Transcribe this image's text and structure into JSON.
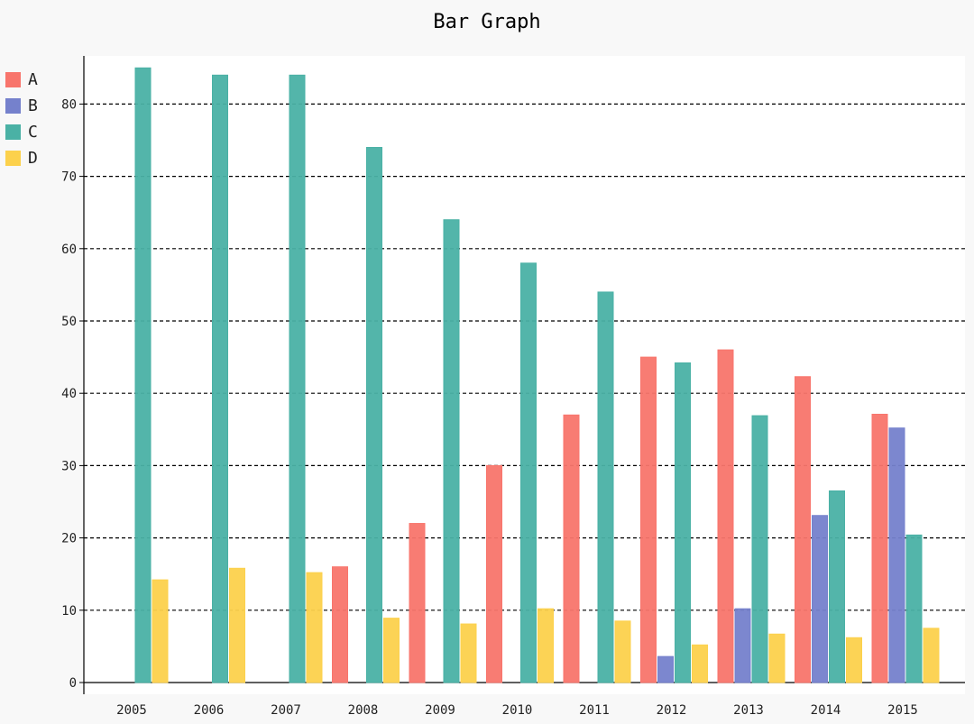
{
  "chart_data": {
    "type": "bar",
    "title": "Bar Graph",
    "xlabel": "",
    "ylabel": "",
    "categories": [
      "2005",
      "2006",
      "2007",
      "2008",
      "2009",
      "2010",
      "2011",
      "2012",
      "2013",
      "2014",
      "2015"
    ],
    "series": [
      {
        "name": "A",
        "color": "#f8756c",
        "values": [
          0,
          0,
          0,
          16,
          22,
          30,
          37,
          45,
          46,
          42.3,
          37.1
        ]
      },
      {
        "name": "B",
        "color": "#7581cc",
        "values": [
          0,
          0,
          0,
          0,
          0,
          0,
          0,
          3.6,
          10.2,
          23.1,
          35.2
        ]
      },
      {
        "name": "C",
        "color": "#4ab1a5",
        "values": [
          85,
          84,
          84,
          74,
          64,
          58,
          54,
          44.2,
          36.9,
          26.5,
          20.4
        ]
      },
      {
        "name": "D",
        "color": "#fcd14c",
        "values": [
          14.2,
          15.8,
          15.2,
          8.9,
          8.1,
          10.2,
          8.5,
          5.2,
          6.7,
          6.2,
          7.5
        ]
      }
    ],
    "ylim": [
      0,
      80
    ],
    "yticks": [
      0,
      10,
      20,
      30,
      40,
      50,
      60,
      70,
      80
    ],
    "grid": "horizontal-dashed",
    "legend_position": "top-left"
  }
}
